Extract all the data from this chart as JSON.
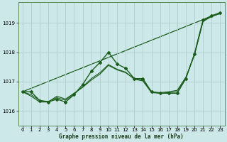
{
  "title": "Graphe pression niveau de la mer (hPa)",
  "bg_color": "#cce8e8",
  "grid_color": "#b0cccc",
  "line_color": "#1a5c1a",
  "xlim": [
    -0.5,
    23.5
  ],
  "ylim": [
    1015.5,
    1019.7
  ],
  "yticks": [
    1016,
    1017,
    1018,
    1019
  ],
  "xticks": [
    0,
    1,
    2,
    3,
    4,
    5,
    6,
    7,
    8,
    9,
    10,
    11,
    12,
    13,
    14,
    15,
    16,
    17,
    18,
    19,
    20,
    21,
    22,
    23
  ],
  "series1_x": [
    0,
    1,
    2,
    3,
    4,
    5,
    6,
    7,
    8,
    9,
    10,
    11,
    12,
    13,
    14,
    15,
    16,
    17,
    18,
    19,
    20,
    21,
    22,
    23
  ],
  "series1_y": [
    1016.65,
    1016.65,
    1016.35,
    1016.3,
    1016.4,
    1016.3,
    1016.55,
    1016.9,
    1017.35,
    1017.65,
    1018.0,
    1017.6,
    1017.45,
    1017.1,
    1017.1,
    1016.65,
    1016.6,
    1016.6,
    1016.6,
    1017.1,
    1017.95,
    1019.1,
    1019.25,
    1019.35
  ],
  "series2_x": [
    0,
    1,
    2,
    3,
    4,
    5,
    6,
    7,
    8,
    9,
    10,
    11,
    12,
    13,
    14,
    15,
    16,
    17,
    18,
    19,
    20,
    21,
    22,
    23
  ],
  "series2_y": [
    1016.65,
    1016.5,
    1016.3,
    1016.3,
    1016.5,
    1016.4,
    1016.6,
    1016.8,
    1017.05,
    1017.25,
    1017.55,
    1017.4,
    1017.3,
    1017.1,
    1017.05,
    1016.65,
    1016.62,
    1016.65,
    1016.7,
    1017.15,
    1017.9,
    1019.05,
    1019.22,
    1019.32
  ],
  "series3_x": [
    0,
    23
  ],
  "series3_y": [
    1016.65,
    1019.35
  ],
  "series4_x": [
    0,
    1,
    2,
    3,
    4,
    5,
    6,
    7,
    8,
    9,
    10,
    11,
    12,
    13,
    14,
    15,
    16,
    17,
    18,
    19,
    20,
    21,
    22,
    23
  ],
  "series4_y": [
    1016.65,
    1016.55,
    1016.35,
    1016.32,
    1016.45,
    1016.36,
    1016.58,
    1016.82,
    1017.1,
    1017.3,
    1017.58,
    1017.42,
    1017.32,
    1017.08,
    1017.02,
    1016.62,
    1016.6,
    1016.62,
    1016.65,
    1017.12,
    1017.92,
    1019.08,
    1019.23,
    1019.33
  ]
}
